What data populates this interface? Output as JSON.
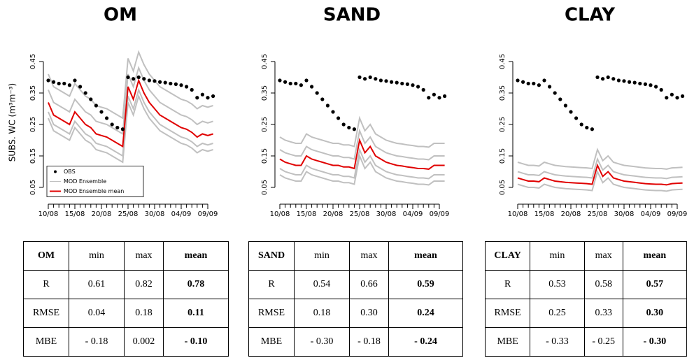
{
  "chart_data": [
    {
      "type": "line",
      "title": "OM",
      "ylabel": "SUBS. WC (m³m⁻³)",
      "legend": "bottomleft",
      "x": [
        "10/08",
        "11/08",
        "12/08",
        "13/08",
        "14/08",
        "15/08",
        "16/08",
        "17/08",
        "18/08",
        "19/08",
        "20/08",
        "21/08",
        "22/08",
        "23/08",
        "24/08",
        "25/08",
        "26/08",
        "27/08",
        "28/08",
        "29/08",
        "30/08",
        "31/08",
        "01/09",
        "02/09",
        "03/09",
        "04/09",
        "05/09",
        "06/09",
        "07/09",
        "08/09",
        "09/09",
        "10/09"
      ],
      "xticks": [
        "10/08",
        "15/08",
        "20/08",
        "25/08",
        "30/08",
        "04/09",
        "09/09"
      ],
      "ylim": [
        0.02,
        0.52
      ],
      "yticks": [
        0.05,
        0.15,
        0.25,
        0.35,
        0.45
      ],
      "series": [
        {
          "name": "OBS",
          "color": "#000000",
          "marker": "point",
          "values": [
            0.39,
            0.385,
            0.38,
            0.38,
            0.375,
            0.39,
            0.37,
            0.35,
            0.33,
            0.31,
            0.29,
            0.27,
            0.25,
            0.24,
            0.235,
            0.4,
            0.395,
            0.4,
            0.395,
            0.39,
            0.388,
            0.385,
            0.383,
            0.38,
            0.378,
            0.375,
            0.37,
            0.36,
            0.335,
            0.345,
            0.335,
            0.34
          ]
        },
        {
          "name": "MOD Ensemble",
          "color": "#c0c0c0",
          "members": [
            [
              0.41,
              0.37,
              0.36,
              0.35,
              0.34,
              0.38,
              0.36,
              0.34,
              0.33,
              0.31,
              0.305,
              0.3,
              0.29,
              0.28,
              0.27,
              0.46,
              0.42,
              0.48,
              0.44,
              0.41,
              0.39,
              0.37,
              0.36,
              0.35,
              0.34,
              0.33,
              0.325,
              0.315,
              0.3,
              0.31,
              0.305,
              0.31
            ],
            [
              0.36,
              0.32,
              0.31,
              0.3,
              0.29,
              0.33,
              0.31,
              0.29,
              0.28,
              0.26,
              0.255,
              0.25,
              0.24,
              0.23,
              0.22,
              0.41,
              0.37,
              0.43,
              0.39,
              0.36,
              0.34,
              0.32,
              0.31,
              0.3,
              0.29,
              0.28,
              0.275,
              0.265,
              0.25,
              0.26,
              0.255,
              0.26
            ],
            [
              0.29,
              0.25,
              0.24,
              0.23,
              0.22,
              0.26,
              0.24,
              0.22,
              0.21,
              0.19,
              0.185,
              0.18,
              0.17,
              0.16,
              0.15,
              0.34,
              0.3,
              0.36,
              0.32,
              0.29,
              0.27,
              0.25,
              0.24,
              0.23,
              0.22,
              0.21,
              0.205,
              0.195,
              0.18,
              0.19,
              0.185,
              0.19
            ],
            [
              0.27,
              0.23,
              0.22,
              0.21,
              0.2,
              0.24,
              0.22,
              0.2,
              0.19,
              0.17,
              0.165,
              0.16,
              0.15,
              0.14,
              0.13,
              0.32,
              0.28,
              0.34,
              0.3,
              0.27,
              0.25,
              0.23,
              0.22,
              0.21,
              0.2,
              0.19,
              0.185,
              0.175,
              0.16,
              0.17,
              0.165,
              0.17
            ]
          ]
        },
        {
          "name": "MOD Ensemble mean",
          "color": "#e00000",
          "values": [
            0.32,
            0.28,
            0.27,
            0.26,
            0.25,
            0.29,
            0.27,
            0.25,
            0.24,
            0.22,
            0.215,
            0.21,
            0.2,
            0.19,
            0.18,
            0.37,
            0.33,
            0.39,
            0.35,
            0.32,
            0.3,
            0.28,
            0.27,
            0.26,
            0.25,
            0.24,
            0.235,
            0.225,
            0.21,
            0.22,
            0.215,
            0.22
          ]
        }
      ]
    },
    {
      "type": "line",
      "title": "SAND",
      "x": [
        "10/08",
        "11/08",
        "12/08",
        "13/08",
        "14/08",
        "15/08",
        "16/08",
        "17/08",
        "18/08",
        "19/08",
        "20/08",
        "21/08",
        "22/08",
        "23/08",
        "24/08",
        "25/08",
        "26/08",
        "27/08",
        "28/08",
        "29/08",
        "30/08",
        "31/08",
        "01/09",
        "02/09",
        "03/09",
        "04/09",
        "05/09",
        "06/09",
        "07/09",
        "08/09",
        "09/09",
        "10/09"
      ],
      "xticks": [
        "10/08",
        "15/08",
        "20/08",
        "25/08",
        "30/08",
        "04/09",
        "09/09"
      ],
      "ylim": [
        0.02,
        0.52
      ],
      "yticks": [
        0.05,
        0.15,
        0.25,
        0.35,
        0.45
      ],
      "series": [
        {
          "color": "#000000",
          "marker": "point",
          "values": [
            0.39,
            0.385,
            0.38,
            0.38,
            0.375,
            0.39,
            0.37,
            0.35,
            0.33,
            0.31,
            0.29,
            0.27,
            0.25,
            0.24,
            0.235,
            0.4,
            0.395,
            0.4,
            0.395,
            0.39,
            0.388,
            0.385,
            0.383,
            0.38,
            0.378,
            0.375,
            0.37,
            0.36,
            0.335,
            0.345,
            0.335,
            0.34
          ]
        },
        {
          "color": "#c0c0c0",
          "members": [
            [
              0.21,
              0.2,
              0.195,
              0.19,
              0.19,
              0.22,
              0.21,
              0.205,
              0.2,
              0.195,
              0.19,
              0.19,
              0.185,
              0.185,
              0.18,
              0.27,
              0.23,
              0.25,
              0.22,
              0.21,
              0.2,
              0.195,
              0.19,
              0.188,
              0.185,
              0.183,
              0.18,
              0.18,
              0.178,
              0.19,
              0.19,
              0.19
            ],
            [
              0.17,
              0.16,
              0.155,
              0.15,
              0.15,
              0.18,
              0.17,
              0.165,
              0.16,
              0.155,
              0.15,
              0.15,
              0.145,
              0.145,
              0.14,
              0.23,
              0.19,
              0.21,
              0.18,
              0.17,
              0.16,
              0.155,
              0.15,
              0.148,
              0.145,
              0.143,
              0.14,
              0.14,
              0.138,
              0.15,
              0.15,
              0.15
            ],
            [
              0.11,
              0.1,
              0.095,
              0.09,
              0.09,
              0.12,
              0.11,
              0.105,
              0.1,
              0.095,
              0.09,
              0.09,
              0.085,
              0.085,
              0.08,
              0.17,
              0.13,
              0.15,
              0.12,
              0.11,
              0.1,
              0.095,
              0.09,
              0.088,
              0.085,
              0.083,
              0.08,
              0.08,
              0.078,
              0.09,
              0.09,
              0.09
            ],
            [
              0.09,
              0.08,
              0.075,
              0.07,
              0.07,
              0.1,
              0.09,
              0.085,
              0.08,
              0.075,
              0.07,
              0.07,
              0.065,
              0.065,
              0.06,
              0.15,
              0.11,
              0.13,
              0.1,
              0.09,
              0.08,
              0.075,
              0.07,
              0.068,
              0.065,
              0.063,
              0.06,
              0.06,
              0.058,
              0.07,
              0.07,
              0.07
            ]
          ]
        },
        {
          "color": "#e00000",
          "values": [
            0.14,
            0.13,
            0.125,
            0.12,
            0.12,
            0.15,
            0.14,
            0.135,
            0.13,
            0.125,
            0.12,
            0.12,
            0.115,
            0.115,
            0.11,
            0.2,
            0.16,
            0.18,
            0.15,
            0.14,
            0.13,
            0.125,
            0.12,
            0.118,
            0.115,
            0.113,
            0.11,
            0.11,
            0.108,
            0.12,
            0.12,
            0.12
          ]
        }
      ]
    },
    {
      "type": "line",
      "title": "CLAY",
      "x": [
        "10/08",
        "11/08",
        "12/08",
        "13/08",
        "14/08",
        "15/08",
        "16/08",
        "17/08",
        "18/08",
        "19/08",
        "20/08",
        "21/08",
        "22/08",
        "23/08",
        "24/08",
        "25/08",
        "26/08",
        "27/08",
        "28/08",
        "29/08",
        "30/08",
        "31/08",
        "01/09",
        "02/09",
        "03/09",
        "04/09",
        "05/09",
        "06/09",
        "07/09",
        "08/09",
        "09/09",
        "10/09"
      ],
      "xticks": [
        "10/08",
        "15/08",
        "20/08",
        "25/08",
        "30/08",
        "04/09",
        "09/09"
      ],
      "ylim": [
        0.02,
        0.52
      ],
      "yticks": [
        0.05,
        0.15,
        0.25,
        0.35,
        0.45
      ],
      "series": [
        {
          "color": "#000000",
          "marker": "point",
          "values": [
            0.39,
            0.385,
            0.38,
            0.38,
            0.375,
            0.39,
            0.37,
            0.35,
            0.33,
            0.31,
            0.29,
            0.27,
            0.25,
            0.24,
            0.235,
            0.4,
            0.395,
            0.4,
            0.395,
            0.39,
            0.388,
            0.385,
            0.383,
            0.38,
            0.378,
            0.375,
            0.37,
            0.36,
            0.335,
            0.345,
            0.335,
            0.34
          ]
        },
        {
          "color": "#c0c0c0",
          "members": [
            [
              0.13,
              0.125,
              0.12,
              0.12,
              0.118,
              0.13,
              0.125,
              0.12,
              0.118,
              0.116,
              0.115,
              0.114,
              0.113,
              0.112,
              0.11,
              0.17,
              0.135,
              0.15,
              0.13,
              0.125,
              0.12,
              0.118,
              0.116,
              0.114,
              0.112,
              0.111,
              0.11,
              0.11,
              0.108,
              0.112,
              0.113,
              0.114
            ],
            [
              0.1,
              0.095,
              0.09,
              0.09,
              0.088,
              0.1,
              0.095,
              0.09,
              0.088,
              0.086,
              0.085,
              0.084,
              0.083,
              0.082,
              0.08,
              0.14,
              0.105,
              0.12,
              0.1,
              0.095,
              0.09,
              0.088,
              0.086,
              0.084,
              0.082,
              0.081,
              0.08,
              0.08,
              0.078,
              0.082,
              0.083,
              0.084
            ],
            [
              0.06,
              0.055,
              0.05,
              0.05,
              0.048,
              0.06,
              0.055,
              0.05,
              0.048,
              0.046,
              0.045,
              0.044,
              0.043,
              0.042,
              0.04,
              0.1,
              0.065,
              0.08,
              0.06,
              0.055,
              0.05,
              0.048,
              0.046,
              0.044,
              0.042,
              0.041,
              0.04,
              0.04,
              0.038,
              0.042,
              0.043,
              0.044
            ]
          ]
        },
        {
          "color": "#e00000",
          "values": [
            0.08,
            0.075,
            0.07,
            0.07,
            0.068,
            0.08,
            0.075,
            0.07,
            0.068,
            0.066,
            0.065,
            0.064,
            0.063,
            0.062,
            0.06,
            0.12,
            0.085,
            0.1,
            0.08,
            0.075,
            0.07,
            0.068,
            0.066,
            0.064,
            0.062,
            0.061,
            0.06,
            0.06,
            0.058,
            0.062,
            0.063,
            0.064
          ]
        }
      ]
    }
  ],
  "tables": [
    {
      "header": [
        "OM",
        "min",
        "max",
        "mean"
      ],
      "rows": [
        [
          "R",
          "0.61",
          "0.82",
          "0.78"
        ],
        [
          "RMSE",
          "0.04",
          "0.18",
          "0.11"
        ],
        [
          "MBE",
          "- 0.18",
          "0.002",
          "- 0.10"
        ]
      ]
    },
    {
      "header": [
        "SAND",
        "min",
        "max",
        "mean"
      ],
      "rows": [
        [
          "R",
          "0.54",
          "0.66",
          "0.59"
        ],
        [
          "RMSE",
          "0.18",
          "0.30",
          "0.24"
        ],
        [
          "MBE",
          "- 0.30",
          "- 0.18",
          "- 0.24"
        ]
      ]
    },
    {
      "header": [
        "CLAY",
        "min",
        "max",
        "mean"
      ],
      "rows": [
        [
          "R",
          "0.53",
          "0.58",
          "0.57"
        ],
        [
          "RMSE",
          "0.25",
          "0.33",
          "0.30"
        ],
        [
          "MBE",
          "- 0.33",
          "- 0.25",
          "- 0.30"
        ]
      ]
    }
  ]
}
